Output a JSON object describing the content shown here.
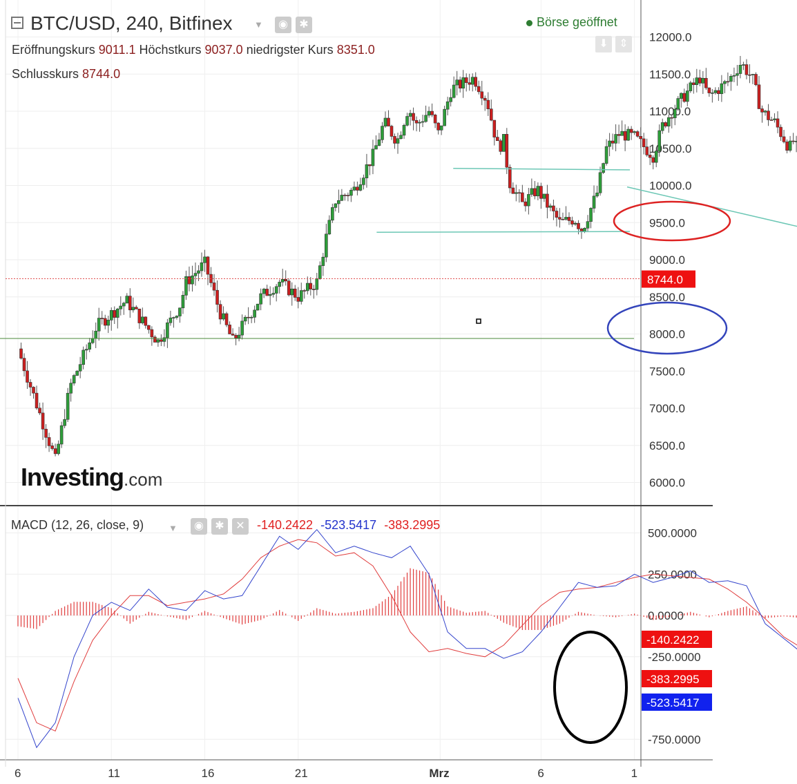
{
  "header": {
    "title": "BTC/USD, 240, Bitfinex",
    "status": "Börse geöffnet",
    "open_label": "Eröffnungskurs",
    "open_value": "9011.1",
    "high_label": "Höchstkurs",
    "high_value": "9037.0",
    "low_label": "niedrigster Kurs",
    "low_value": "8351.0",
    "close_label": "Schlusskurs",
    "close_value": "8744.0"
  },
  "logo": {
    "main": "Investing",
    "suffix": ".com"
  },
  "macd_header": {
    "label": "MACD (12, 26, close, 9)",
    "hist_value": "-140.2422",
    "macd_value": "-523.5417",
    "signal_value": "-383.2995"
  },
  "chart_data": [
    {
      "type": "candlestick",
      "title": "BTC/USD, 240, Bitfinex",
      "ylim": [
        5750,
        12500
      ],
      "price_axis_ticks": [
        "12000.0",
        "11500.0",
        "11000.0",
        "10500.0",
        "10000.0",
        "9500.0",
        "9000.0",
        "8500.0",
        "8000.0",
        "7500.0",
        "7000.0",
        "6500.0",
        "6000.0"
      ],
      "time_axis_ticks": [
        "6",
        "11",
        "16",
        "21",
        "Mrz",
        "6",
        "1"
      ],
      "current_price_label": "8744.0",
      "grid": true,
      "path_keypoints": [
        [
          0.0,
          7800
        ],
        [
          2.0,
          6300
        ],
        [
          2.8,
          7300
        ],
        [
          4.2,
          8100
        ],
        [
          5.8,
          8450
        ],
        [
          7.5,
          7900
        ],
        [
          8.7,
          8400
        ],
        [
          9.0,
          8700
        ],
        [
          10.0,
          8950
        ],
        [
          10.8,
          8300
        ],
        [
          11.5,
          7900
        ],
        [
          13.0,
          8500
        ],
        [
          14.0,
          8700
        ],
        [
          15.0,
          8500
        ],
        [
          16.0,
          8700
        ],
        [
          16.5,
          9300
        ],
        [
          17.0,
          9800
        ],
        [
          18.0,
          9950
        ],
        [
          19.0,
          10400
        ],
        [
          19.6,
          10850
        ],
        [
          20.3,
          10600
        ],
        [
          20.9,
          11050
        ],
        [
          21.3,
          10800
        ],
        [
          22.0,
          11000
        ],
        [
          22.5,
          10700
        ],
        [
          23.2,
          11300
        ],
        [
          24.4,
          11450
        ],
        [
          25.1,
          11150
        ],
        [
          25.7,
          10500
        ],
        [
          26.0,
          10600
        ],
        [
          26.3,
          10050
        ],
        [
          27.0,
          9750
        ],
        [
          27.8,
          9950
        ],
        [
          28.3,
          9750
        ],
        [
          29.0,
          9500
        ],
        [
          29.8,
          9550
        ],
        [
          30.2,
          9400
        ],
        [
          31.0,
          9900
        ],
        [
          31.5,
          10500
        ],
        [
          32.2,
          10700
        ],
        [
          33.0,
          10650
        ],
        [
          34.0,
          10400
        ],
        [
          34.5,
          10800
        ],
        [
          35.0,
          11000
        ],
        [
          35.8,
          11250
        ],
        [
          36.5,
          11450
        ],
        [
          37.0,
          11200
        ],
        [
          38.0,
          11400
        ],
        [
          38.7,
          11650
        ],
        [
          39.3,
          11450
        ],
        [
          39.8,
          11000
        ],
        [
          40.5,
          10850
        ],
        [
          41.3,
          10500
        ],
        [
          41.6,
          10650
        ],
        [
          42.0,
          9800
        ],
        [
          42.3,
          9600
        ],
        [
          42.8,
          9950
        ],
        [
          43.2,
          9550
        ],
        [
          43.6,
          9300
        ],
        [
          44.0,
          8744
        ]
      ],
      "annotations": [
        {
          "kind": "ellipse",
          "color": "#dd2222",
          "around": "9500.0"
        },
        {
          "kind": "ellipse",
          "color": "#3344bb",
          "around": "8000.0"
        },
        {
          "kind": "horizontal-line",
          "price": 7940
        },
        {
          "kind": "trend-segment",
          "price": 10220
        },
        {
          "kind": "trend-segment",
          "price": 9380
        },
        {
          "kind": "price-line",
          "price": 8744
        }
      ]
    },
    {
      "type": "macd",
      "title": "MACD (12, 26, close, 9)",
      "ylim": [
        -850,
        600
      ],
      "axis_ticks": [
        500,
        250,
        0,
        -250,
        -750
      ],
      "axis_tick_labels": [
        "500.0000",
        "250.0000",
        "0.0000",
        "-250.0000",
        "-750.0000"
      ],
      "current_labels": {
        "histogram": "-140.2422",
        "signal": "-383.2995",
        "macd": "-523.5417"
      },
      "colors": {
        "macd": "#3344cc",
        "signal": "#e03c3c",
        "histogram": "#e03c3c"
      },
      "macd_keypoints": [
        [
          0.0,
          -500
        ],
        [
          1.0,
          -800
        ],
        [
          2.0,
          -650
        ],
        [
          3.0,
          -250
        ],
        [
          4.0,
          0
        ],
        [
          5.0,
          80
        ],
        [
          6.0,
          30
        ],
        [
          7.0,
          160
        ],
        [
          8.0,
          50
        ],
        [
          9.0,
          30
        ],
        [
          10.0,
          150
        ],
        [
          11.0,
          100
        ],
        [
          12.0,
          120
        ],
        [
          13.0,
          300
        ],
        [
          14.0,
          480
        ],
        [
          15.0,
          400
        ],
        [
          16.0,
          520
        ],
        [
          17.0,
          380
        ],
        [
          18.0,
          420
        ],
        [
          19.0,
          380
        ],
        [
          20.0,
          350
        ],
        [
          21.0,
          420
        ],
        [
          22.0,
          250
        ],
        [
          23.0,
          -100
        ],
        [
          24.0,
          -200
        ],
        [
          25.0,
          -200
        ],
        [
          26.0,
          -260
        ],
        [
          27.0,
          -220
        ],
        [
          28.0,
          -100
        ],
        [
          29.0,
          50
        ],
        [
          30.0,
          200
        ],
        [
          31.0,
          170
        ],
        [
          32.0,
          180
        ],
        [
          33.0,
          250
        ],
        [
          34.0,
          200
        ],
        [
          35.0,
          230
        ],
        [
          36.0,
          270
        ],
        [
          37.0,
          200
        ],
        [
          38.0,
          210
        ],
        [
          39.0,
          180
        ],
        [
          40.0,
          -50
        ],
        [
          41.0,
          -140
        ],
        [
          42.0,
          -230
        ],
        [
          43.0,
          -350
        ],
        [
          44.0,
          -523.5
        ]
      ],
      "signal_keypoints": [
        [
          0.0,
          -380
        ],
        [
          1.0,
          -650
        ],
        [
          2.0,
          -700
        ],
        [
          3.0,
          -400
        ],
        [
          4.0,
          -150
        ],
        [
          5.0,
          0
        ],
        [
          6.0,
          120
        ],
        [
          7.0,
          120
        ],
        [
          8.0,
          60
        ],
        [
          9.0,
          80
        ],
        [
          10.0,
          100
        ],
        [
          11.0,
          130
        ],
        [
          12.0,
          220
        ],
        [
          13.0,
          350
        ],
        [
          14.0,
          420
        ],
        [
          15.0,
          460
        ],
        [
          16.0,
          440
        ],
        [
          17.0,
          360
        ],
        [
          18.0,
          380
        ],
        [
          19.0,
          300
        ],
        [
          20.0,
          120
        ],
        [
          21.0,
          -100
        ],
        [
          22.0,
          -220
        ],
        [
          23.0,
          -200
        ],
        [
          24.0,
          -230
        ],
        [
          25.0,
          -250
        ],
        [
          26.0,
          -180
        ],
        [
          27.0,
          -60
        ],
        [
          28.0,
          60
        ],
        [
          29.0,
          140
        ],
        [
          30.0,
          160
        ],
        [
          31.0,
          170
        ],
        [
          32.0,
          200
        ],
        [
          33.0,
          230
        ],
        [
          34.0,
          250
        ],
        [
          35.0,
          240
        ],
        [
          36.0,
          230
        ],
        [
          37.0,
          220
        ],
        [
          38.0,
          160
        ],
        [
          39.0,
          80
        ],
        [
          40.0,
          -20
        ],
        [
          41.0,
          -130
        ],
        [
          42.0,
          -200
        ],
        [
          43.0,
          -280
        ],
        [
          44.0,
          -383.3
        ]
      ],
      "annotations": [
        {
          "kind": "ellipse",
          "color": "#000000",
          "around": "latest values"
        }
      ]
    }
  ]
}
